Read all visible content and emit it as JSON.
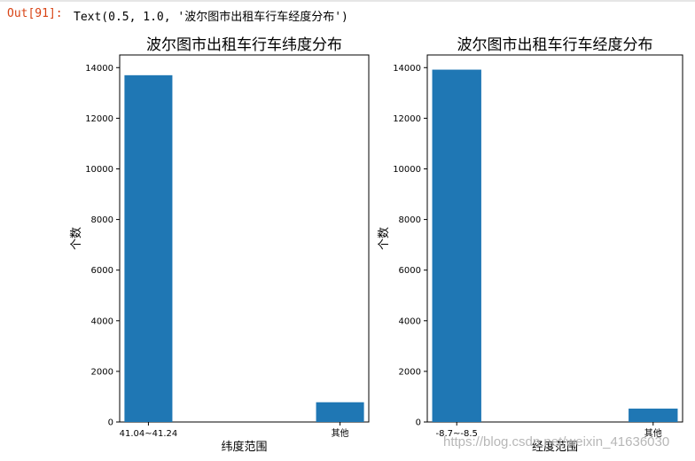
{
  "output": {
    "prompt": "Out[91]:",
    "text": "Text(0.5, 1.0, '波尔图市出租车行车经度分布')"
  },
  "watermark": "https://blog.csdn.net/weixin_41636030",
  "chart_data": [
    {
      "type": "bar",
      "title": "波尔图市出租车行车纬度分布",
      "xlabel": "纬度范围",
      "ylabel": "个数",
      "categories": [
        "41.04~41.24",
        "其他"
      ],
      "values": [
        13700,
        780
      ],
      "ylim": [
        0,
        14500
      ],
      "yticks": [
        0,
        2000,
        4000,
        6000,
        8000,
        10000,
        12000,
        14000
      ],
      "color": "#1f77b4",
      "grid": false
    },
    {
      "type": "bar",
      "title": "波尔图市出租车行车经度分布",
      "xlabel": "经度范围",
      "ylabel": "个数",
      "categories": [
        "-8.7~-8.5",
        "其他"
      ],
      "values": [
        13920,
        530
      ],
      "ylim": [
        0,
        14500
      ],
      "yticks": [
        0,
        2000,
        4000,
        6000,
        8000,
        10000,
        12000,
        14000
      ],
      "color": "#1f77b4",
      "grid": false
    }
  ]
}
